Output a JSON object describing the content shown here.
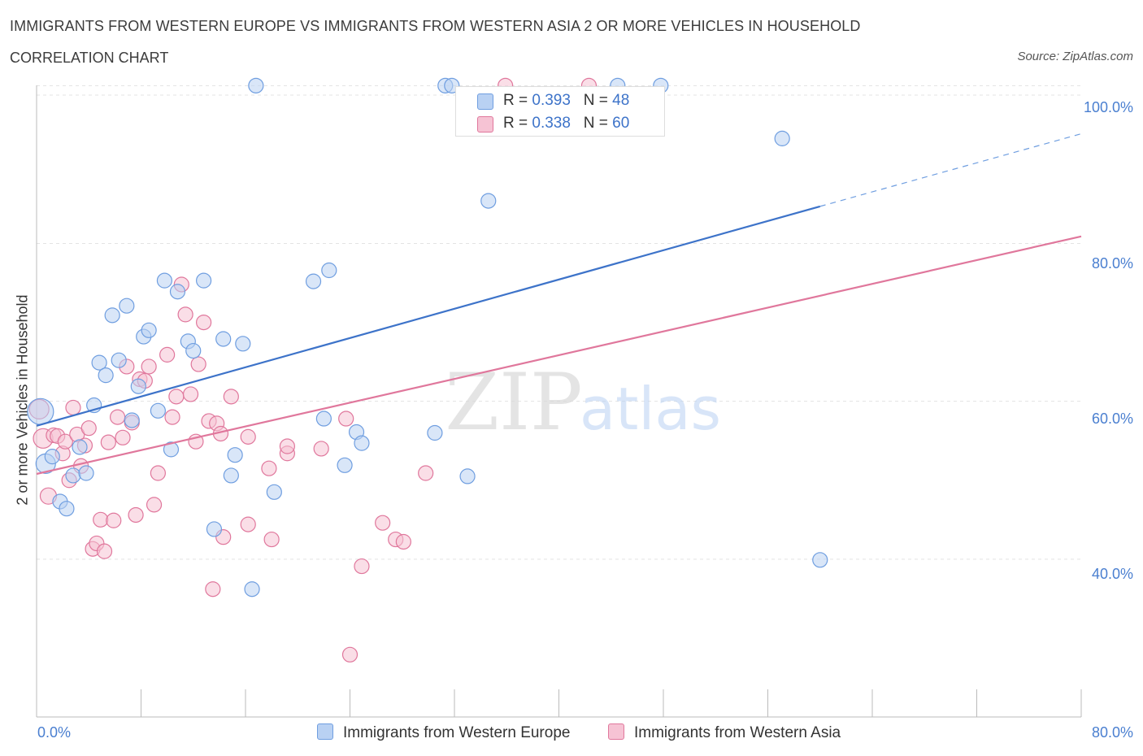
{
  "chart_data": {
    "type": "scatter",
    "title": "IMMIGRANTS FROM WESTERN EUROPE VS IMMIGRANTS FROM WESTERN ASIA 2 OR MORE VEHICLES IN HOUSEHOLD",
    "subtitle": "CORRELATION CHART",
    "source": "Source: ZipAtlas.com",
    "ylabel": "2 or more Vehicles in Household",
    "xlabel": "",
    "xlim": [
      0,
      80
    ],
    "ylim": [
      20,
      100
    ],
    "x_tick_labels": [
      "0.0%",
      "80.0%"
    ],
    "y_tick_labels": [
      "40.0%",
      "60.0%",
      "80.0%",
      "100.0%"
    ],
    "y_ticks": [
      40,
      60,
      80,
      100
    ],
    "watermark": "ZIPatlas",
    "legend_position": "top-center",
    "series": [
      {
        "name": "Immigrants from Western Europe",
        "R": "0.393",
        "N": "48",
        "color": "#6f9ee0",
        "fill": "#b9d1f3",
        "trend": {
          "x0": 0,
          "y0": 56.9,
          "x1": 60,
          "y1": 84.7,
          "dash_x_end": 80,
          "dash_y_end": 93.9
        },
        "points": [
          [
            0.3,
            58.7,
            16
          ],
          [
            0.7,
            52.1,
            12
          ],
          [
            1.2,
            53.0,
            9
          ],
          [
            1.8,
            47.3,
            9
          ],
          [
            2.3,
            46.4,
            9
          ],
          [
            2.8,
            50.6,
            9
          ],
          [
            3.3,
            54.2,
            9
          ],
          [
            3.8,
            50.9,
            9
          ],
          [
            4.4,
            59.5,
            9
          ],
          [
            4.8,
            64.9,
            9
          ],
          [
            5.3,
            63.3,
            9
          ],
          [
            5.8,
            70.9,
            9
          ],
          [
            6.3,
            65.2,
            9
          ],
          [
            6.9,
            72.1,
            9
          ],
          [
            7.3,
            57.6,
            9
          ],
          [
            7.8,
            61.9,
            9
          ],
          [
            8.2,
            68.2,
            9
          ],
          [
            8.6,
            69.0,
            9
          ],
          [
            9.3,
            58.8,
            9
          ],
          [
            9.8,
            75.3,
            9
          ],
          [
            10.3,
            53.9,
            9
          ],
          [
            10.8,
            73.9,
            9
          ],
          [
            11.6,
            67.6,
            9
          ],
          [
            12.0,
            66.4,
            9
          ],
          [
            12.8,
            75.3,
            9
          ],
          [
            13.6,
            43.8,
            9
          ],
          [
            14.3,
            67.9,
            9
          ],
          [
            14.9,
            50.6,
            9
          ],
          [
            15.2,
            53.2,
            9
          ],
          [
            15.8,
            67.3,
            9
          ],
          [
            16.5,
            36.2,
            9
          ],
          [
            16.8,
            100.0,
            9
          ],
          [
            18.2,
            48.5,
            9
          ],
          [
            21.2,
            75.2,
            9
          ],
          [
            22.0,
            57.8,
            9
          ],
          [
            22.4,
            76.6,
            9
          ],
          [
            23.6,
            51.9,
            9
          ],
          [
            24.5,
            56.1,
            9
          ],
          [
            24.9,
            54.7,
            9
          ],
          [
            30.5,
            56.0,
            9
          ],
          [
            31.3,
            100.0,
            9
          ],
          [
            31.8,
            100.0,
            9
          ],
          [
            33.0,
            50.5,
            9
          ],
          [
            34.6,
            85.4,
            9
          ],
          [
            44.5,
            100.0,
            9
          ],
          [
            47.8,
            100.0,
            9
          ],
          [
            57.1,
            93.3,
            9
          ],
          [
            60.0,
            39.9,
            9
          ]
        ]
      },
      {
        "name": "Immigrants from Western Asia",
        "R": "0.338",
        "N": "60",
        "color": "#e0779c",
        "fill": "#f6c3d4",
        "trend": {
          "x0": 0,
          "y0": 50.8,
          "x1": 80,
          "y1": 80.9
        },
        "points": [
          [
            0.2,
            59.0,
            12
          ],
          [
            0.5,
            55.3,
            12
          ],
          [
            0.9,
            48.0,
            10
          ],
          [
            1.3,
            55.7,
            9
          ],
          [
            1.6,
            55.6,
            9
          ],
          [
            2.0,
            53.4,
            9
          ],
          [
            2.2,
            54.9,
            9
          ],
          [
            2.5,
            50.0,
            9
          ],
          [
            2.8,
            59.2,
            9
          ],
          [
            3.1,
            55.8,
            9
          ],
          [
            3.4,
            51.8,
            9
          ],
          [
            3.7,
            54.4,
            9
          ],
          [
            4.0,
            56.6,
            9
          ],
          [
            4.3,
            41.3,
            9
          ],
          [
            4.6,
            42.0,
            9
          ],
          [
            4.9,
            45.0,
            9
          ],
          [
            5.2,
            41.0,
            9
          ],
          [
            5.5,
            54.8,
            9
          ],
          [
            5.9,
            44.9,
            9
          ],
          [
            6.2,
            58.0,
            9
          ],
          [
            6.6,
            55.4,
            9
          ],
          [
            6.9,
            64.4,
            9
          ],
          [
            7.3,
            57.3,
            9
          ],
          [
            7.6,
            45.6,
            9
          ],
          [
            7.9,
            62.8,
            9
          ],
          [
            8.3,
            62.6,
            9
          ],
          [
            8.6,
            64.4,
            9
          ],
          [
            9.0,
            46.9,
            9
          ],
          [
            9.3,
            50.9,
            9
          ],
          [
            10.0,
            65.9,
            9
          ],
          [
            10.4,
            58.0,
            9
          ],
          [
            10.7,
            60.6,
            9
          ],
          [
            11.1,
            74.8,
            9
          ],
          [
            11.4,
            71.0,
            9
          ],
          [
            11.8,
            60.9,
            9
          ],
          [
            12.2,
            54.9,
            9
          ],
          [
            12.4,
            64.7,
            9
          ],
          [
            12.8,
            70.0,
            9
          ],
          [
            13.2,
            57.5,
            9
          ],
          [
            13.5,
            36.2,
            9
          ],
          [
            13.8,
            57.2,
            9
          ],
          [
            14.1,
            55.9,
            9
          ],
          [
            14.3,
            42.8,
            9
          ],
          [
            14.9,
            60.6,
            9
          ],
          [
            16.2,
            44.4,
            9
          ],
          [
            16.2,
            55.5,
            9
          ],
          [
            17.8,
            51.5,
            9
          ],
          [
            18.0,
            42.5,
            9
          ],
          [
            19.2,
            53.4,
            9
          ],
          [
            19.2,
            54.3,
            9
          ],
          [
            21.8,
            54.0,
            9
          ],
          [
            23.7,
            57.8,
            9
          ],
          [
            24.0,
            27.9,
            9
          ],
          [
            24.9,
            39.1,
            9
          ],
          [
            26.5,
            44.6,
            9
          ],
          [
            27.5,
            42.5,
            9
          ],
          [
            28.1,
            42.2,
            9
          ],
          [
            29.8,
            50.9,
            9
          ],
          [
            35.9,
            100.0,
            9
          ],
          [
            42.3,
            100.0,
            9
          ]
        ]
      }
    ]
  }
}
